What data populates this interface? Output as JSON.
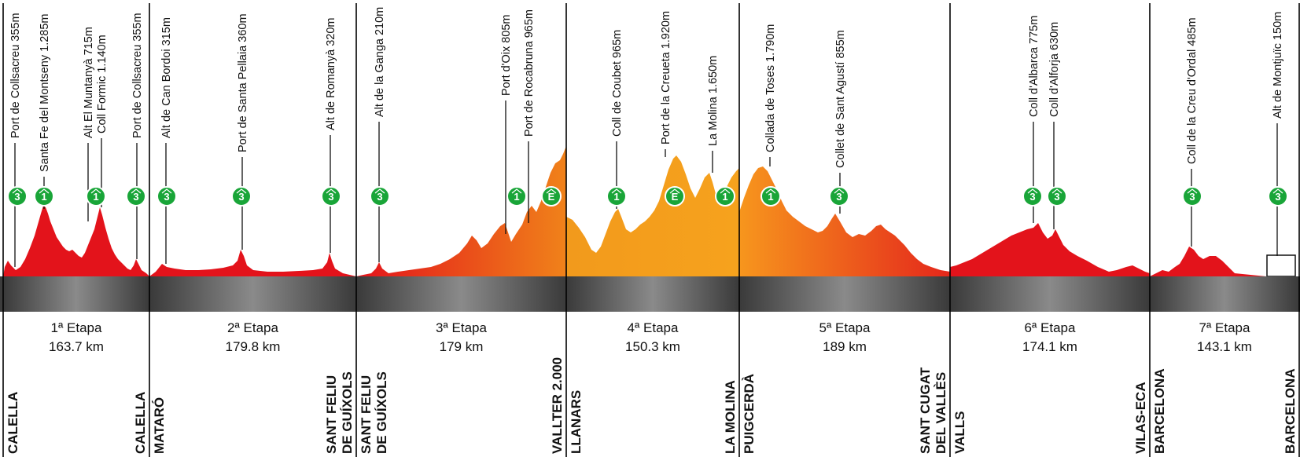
{
  "colors": {
    "stage_1": "#e3131b",
    "stage_2": "#e3131b",
    "stage_3": [
      "#e12a1c",
      "#ee7f1a"
    ],
    "stage_4": "#f39c1b",
    "stage_5": [
      "#f7931e",
      "#e3131b"
    ],
    "stage_6": "#e3131b",
    "stage_7": "#e3131b",
    "badge": "#19a538",
    "road": "#4a4a4a"
  },
  "stages": [
    {
      "id": "etapa-1",
      "title": "1ª Etapa",
      "distance": "163.7 km",
      "start": [
        "CALELLA"
      ],
      "finish": [
        "CALELLA"
      ],
      "climbs": [
        {
          "name": "Port de Collsacreu 355m",
          "category": "3"
        },
        {
          "name": "Santa Fe del Montseny 1.285m",
          "category": "1"
        },
        {
          "name": "Alt  El Muntanyà 715m",
          "category": ""
        },
        {
          "name": "Coll Formic 1.140m",
          "category": "1"
        },
        {
          "name": "Port de Collsacreu 355m",
          "category": "3"
        }
      ]
    },
    {
      "id": "etapa-2",
      "title": "2ª Etapa",
      "distance": "179.8 km",
      "start": [
        "MATARÓ"
      ],
      "finish": [
        "SANT FELIU",
        "DE GUÍXOLS"
      ],
      "climbs": [
        {
          "name": "Alt de Can Bordoi 315m",
          "category": "3"
        },
        {
          "name": "Port de Santa Pellaia 360m",
          "category": "3"
        },
        {
          "name": "Alt de Romanyà 320m",
          "category": "3"
        }
      ]
    },
    {
      "id": "etapa-3",
      "title": "3ª Etapa",
      "distance": "179 km",
      "start": [
        "SANT FELIU",
        "DE GUÍXOLS"
      ],
      "finish": [
        "VALLTER 2.000"
      ],
      "climbs": [
        {
          "name": "Alt de la Ganga 210m",
          "category": "3"
        },
        {
          "name": "Port d'Oix 805m",
          "category": "1"
        },
        {
          "name": "Port de Rocabruna 965m",
          "category": "E"
        }
      ]
    },
    {
      "id": "etapa-4",
      "title": "4ª Etapa",
      "distance": "150.3 km",
      "start": [
        "LLANARS"
      ],
      "finish": [
        "LA MOLINA"
      ],
      "climbs": [
        {
          "name": "Coll de Coubet 965m",
          "category": "1"
        },
        {
          "name": "Port de la Creueta 1.920m",
          "category": "E"
        },
        {
          "name": "La Molina 1.650m",
          "category": "1"
        }
      ]
    },
    {
      "id": "etapa-5",
      "title": "5ª Etapa",
      "distance": "189 km",
      "start": [
        "PUIGCERDÀ"
      ],
      "finish": [
        "SANT CUGAT",
        "DEL VALLÈS"
      ],
      "climbs": [
        {
          "name": "Collada de Toses 1.790m",
          "category": "1"
        },
        {
          "name": "Collet de  Sant Agustí 855m",
          "category": "3"
        }
      ]
    },
    {
      "id": "etapa-6",
      "title": "6ª Etapa",
      "distance": "174.1 km",
      "start": [
        "VALLS"
      ],
      "finish": [
        "VILAS-ECA"
      ],
      "climbs": [
        {
          "name": "Coll d'Albarca 775m",
          "category": "3"
        },
        {
          "name": "Coll d'Alforja 630m",
          "category": "3"
        }
      ]
    },
    {
      "id": "etapa-7",
      "title": "7ª Etapa",
      "distance": "143.1 km",
      "start": [
        "BARCELONA"
      ],
      "finish": [
        "BARCELONA"
      ],
      "climbs": [
        {
          "name": "Coll de la Creu d'Ordal 485m",
          "category": "3"
        },
        {
          "name": "Alt de Montjuïc 150m",
          "category": "3"
        }
      ]
    }
  ]
}
